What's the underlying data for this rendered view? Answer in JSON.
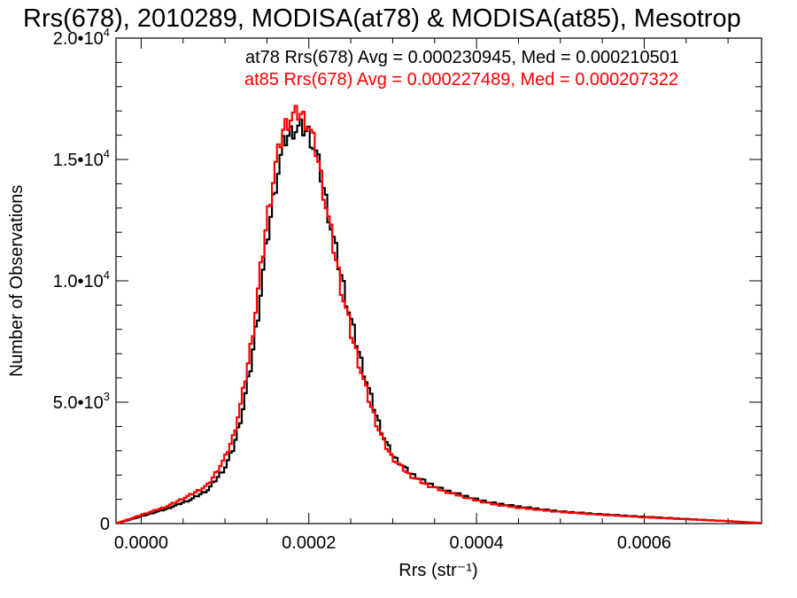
{
  "chart_data": {
    "type": "line",
    "title": "Rrs(678), 2010289, MODISA(at78) & MODISA(at85), Mesotrop",
    "xlabel": "Rrs (str⁻¹)",
    "ylabel": "Number of Observations",
    "xlim": [
      -3e-05,
      0.00074
    ],
    "ylim": [
      0,
      20000
    ],
    "x_ticks": [
      0.0,
      0.0002,
      0.0004,
      0.0006
    ],
    "x_tick_labels": [
      "0.0000",
      "0.0002",
      "0.0004",
      "0.0006"
    ],
    "y_ticks": [
      0,
      5000,
      10000,
      15000,
      20000
    ],
    "y_tick_labels": [
      {
        "mant": "0",
        "exp": ""
      },
      {
        "mant": "5.0•10",
        "exp": "3"
      },
      {
        "mant": "1.0•10",
        "exp": "4"
      },
      {
        "mant": "1.5•10",
        "exp": "4"
      },
      {
        "mant": "2.0•10",
        "exp": "4"
      }
    ],
    "grid": false,
    "series": [
      {
        "name": "at78",
        "color": "#000000",
        "x": [
          -3e-05,
          0.0,
          3e-05,
          6e-05,
          8e-05,
          0.0001,
          0.00011,
          0.00012,
          0.00013,
          0.00014,
          0.00015,
          0.00016,
          0.00017,
          0.00018,
          0.00019,
          0.0002,
          0.00021,
          0.00022,
          0.00023,
          0.00024,
          0.00025,
          0.00026,
          0.00027,
          0.00028,
          0.00029,
          0.0003,
          0.00032,
          0.00034,
          0.00036,
          0.00038,
          0.0004,
          0.00042,
          0.00045,
          0.0005,
          0.00055,
          0.0006,
          0.00065,
          0.0007,
          0.00074
        ],
        "y": [
          0,
          300,
          600,
          1000,
          1400,
          2300,
          3100,
          4500,
          6300,
          8800,
          11600,
          13900,
          15700,
          16200,
          16300,
          16100,
          15100,
          13400,
          11600,
          10000,
          8400,
          7000,
          5700,
          4500,
          3500,
          2800,
          2100,
          1700,
          1400,
          1200,
          1000,
          850,
          700,
          500,
          380,
          280,
          190,
          100,
          20
        ]
      },
      {
        "name": "at85",
        "color": "#ff0000",
        "x": [
          -3e-05,
          0.0,
          3e-05,
          6e-05,
          8e-05,
          0.0001,
          0.00011,
          0.00012,
          0.00013,
          0.00014,
          0.00015,
          0.00016,
          0.00017,
          0.00018,
          0.00019,
          0.0002,
          0.00021,
          0.00022,
          0.00023,
          0.00024,
          0.00025,
          0.00026,
          0.00027,
          0.00028,
          0.00029,
          0.0003,
          0.00032,
          0.00034,
          0.00036,
          0.00038,
          0.0004,
          0.00042,
          0.00045,
          0.0005,
          0.00055,
          0.0006,
          0.00065,
          0.0007,
          0.00074
        ],
        "y": [
          0,
          350,
          700,
          1200,
          1600,
          2700,
          3600,
          5100,
          7100,
          9700,
          12500,
          14700,
          16300,
          16800,
          16900,
          16400,
          15200,
          13200,
          11300,
          9500,
          7900,
          6600,
          5300,
          4200,
          3300,
          2700,
          2000,
          1600,
          1350,
          1150,
          950,
          800,
          650,
          480,
          360,
          260,
          180,
          100,
          20
        ]
      }
    ],
    "annotations": [
      {
        "text": "at78 Rrs(678) Avg = 0.000230945, Med = 0.000210501",
        "color": "#000000"
      },
      {
        "text": "at85 Rrs(678) Avg = 0.000227489, Med = 0.000207322",
        "color": "#ff0000"
      }
    ]
  }
}
